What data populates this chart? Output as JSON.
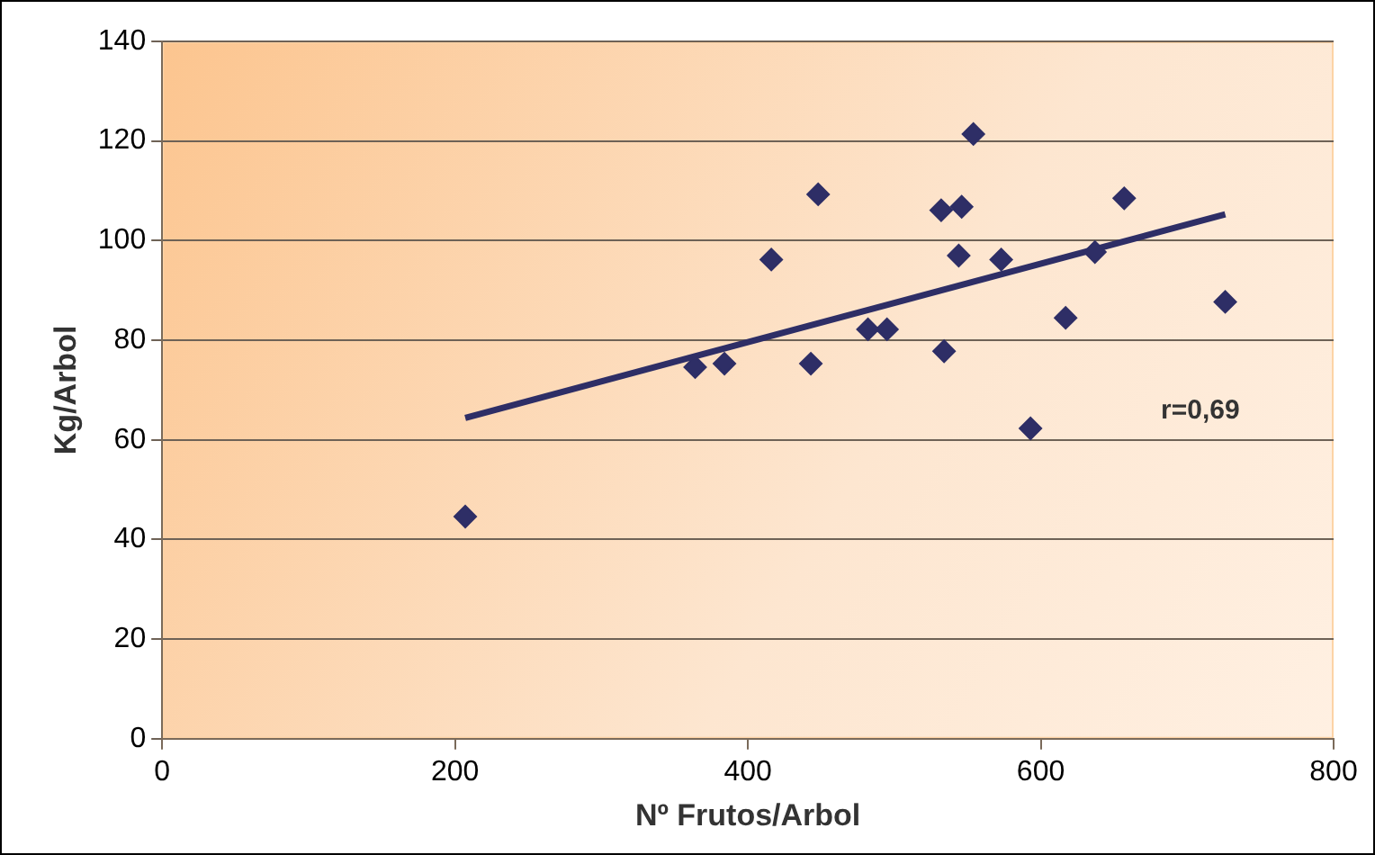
{
  "chart_data": {
    "type": "scatter",
    "xlabel": "Nº Frutos/Arbol",
    "ylabel": "Kg/Arbol",
    "xlim": [
      0,
      800
    ],
    "xticks": [
      0,
      200,
      400,
      600,
      800
    ],
    "ylim": [
      0,
      140
    ],
    "yticks": [
      0,
      20,
      40,
      60,
      80,
      100,
      120,
      140
    ],
    "grid": "y",
    "legend": false,
    "marker": "diamond",
    "annotations": [
      "r=0,69"
    ],
    "series": [
      {
        "type": "scatter",
        "color": "#2e2e66",
        "x": [
          207,
          364,
          384,
          416,
          443,
          448,
          482,
          495,
          532,
          534,
          544,
          546,
          554,
          573,
          593,
          617,
          637,
          657,
          726
        ],
        "values": [
          44.6,
          74.6,
          75.3,
          96.2,
          75.3,
          109.3,
          82.2,
          82.2,
          106.1,
          77.8,
          97.0,
          106.8,
          121.4,
          96.2,
          62.3,
          84.5,
          97.7,
          108.5,
          87.7
        ]
      },
      {
        "type": "line",
        "color": "#2e2e66",
        "marker": "none",
        "line_style": "solid",
        "x": [
          207,
          726
        ],
        "values": [
          64.4,
          105.3
        ]
      }
    ]
  }
}
